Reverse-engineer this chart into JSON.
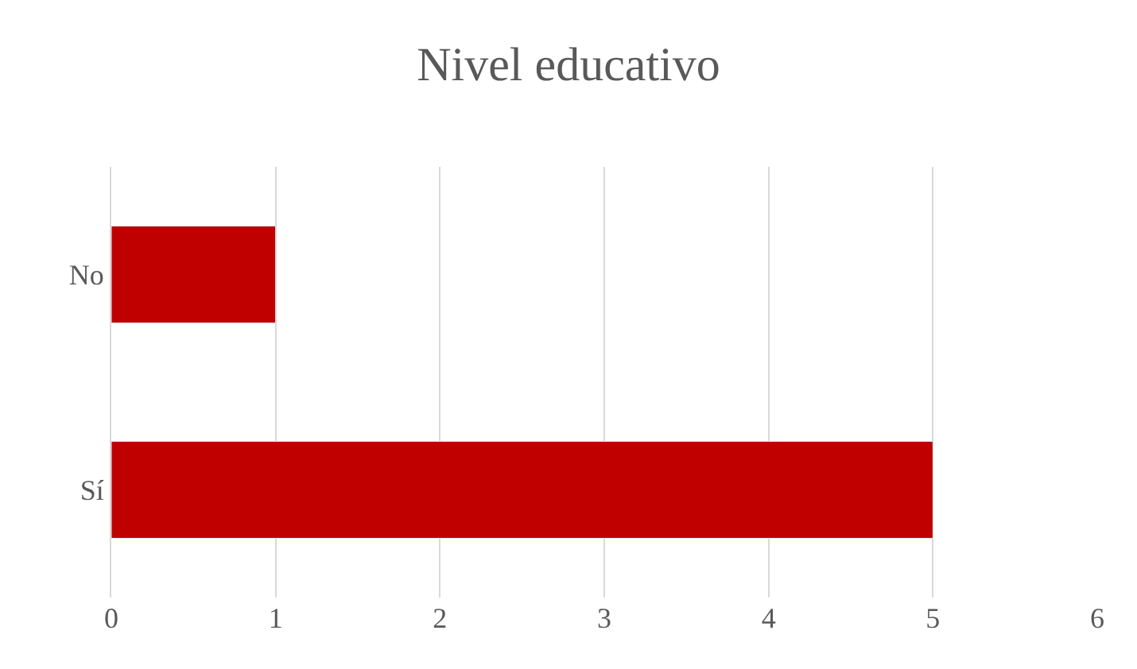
{
  "chart_data": {
    "type": "bar",
    "title": "Nivel educativo",
    "orientation": "horizontal",
    "categories": [
      "No",
      "Sí"
    ],
    "values": [
      1,
      5
    ],
    "color": "#c00000",
    "xlim": [
      0,
      6
    ],
    "xticks": [
      0,
      1,
      2,
      3,
      4,
      5,
      6
    ],
    "grid": "x",
    "legend": false
  }
}
